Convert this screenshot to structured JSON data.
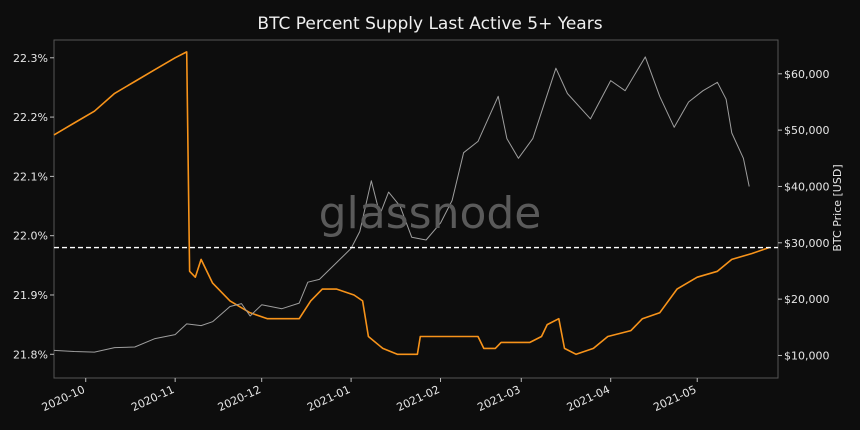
{
  "chart_data": {
    "type": "line",
    "title": "BTC Percent Supply Last Active 5+ Years",
    "watermark": "glassnode",
    "xlabel": "",
    "ylabel_left": "",
    "ylabel_right": "BTC Price [USD]",
    "x_ticks": [
      "2020-10",
      "2020-11",
      "2020-12",
      "2021-01",
      "2021-02",
      "2021-03",
      "2021-04",
      "2021-05"
    ],
    "y_left_ticks": [
      {
        "value": 21.8,
        "label": "21.8%"
      },
      {
        "value": 21.9,
        "label": "21.9%"
      },
      {
        "value": 22.0,
        "label": "22.0%"
      },
      {
        "value": 22.1,
        "label": "22.1%"
      },
      {
        "value": 22.2,
        "label": "22.2%"
      },
      {
        "value": 22.3,
        "label": "22.3%"
      }
    ],
    "y_right_ticks": [
      {
        "value": 10000,
        "label": "$10,000"
      },
      {
        "value": 20000,
        "label": "$20,000"
      },
      {
        "value": 30000,
        "label": "$30,000"
      },
      {
        "value": 40000,
        "label": "$40,000"
      },
      {
        "value": 50000,
        "label": "$50,000"
      },
      {
        "value": 60000,
        "label": "$60,000"
      }
    ],
    "xlim": [
      "2020-09-20",
      "2021-05-29"
    ],
    "ylim_left": [
      21.76,
      22.33
    ],
    "ylim_right": [
      6000,
      66000
    ],
    "grid": false,
    "reference_line": {
      "axis": "left",
      "value": 21.98,
      "style": "dashed",
      "color": "#ffffff"
    },
    "series": [
      {
        "axis": "left",
        "color": "#f7931a",
        "points": [
          [
            "2020-09-20",
            22.17
          ],
          [
            "2020-09-27",
            22.19
          ],
          [
            "2020-10-04",
            22.21
          ],
          [
            "2020-10-11",
            22.24
          ],
          [
            "2020-10-18",
            22.26
          ],
          [
            "2020-10-25",
            22.28
          ],
          [
            "2020-11-01",
            22.3
          ],
          [
            "2020-11-05",
            22.31
          ],
          [
            "2020-11-06",
            21.94
          ],
          [
            "2020-11-08",
            21.93
          ],
          [
            "2020-11-10",
            21.96
          ],
          [
            "2020-11-14",
            21.92
          ],
          [
            "2020-11-20",
            21.89
          ],
          [
            "2020-11-27",
            21.87
          ],
          [
            "2020-12-03",
            21.86
          ],
          [
            "2020-12-10",
            21.86
          ],
          [
            "2020-12-14",
            21.86
          ],
          [
            "2020-12-18",
            21.89
          ],
          [
            "2020-12-22",
            21.91
          ],
          [
            "2020-12-27",
            21.91
          ],
          [
            "2021-01-02",
            21.9
          ],
          [
            "2021-01-05",
            21.89
          ],
          [
            "2021-01-07",
            21.83
          ],
          [
            "2021-01-12",
            21.81
          ],
          [
            "2021-01-17",
            21.8
          ],
          [
            "2021-01-24",
            21.8
          ],
          [
            "2021-01-25",
            21.83
          ],
          [
            "2021-02-03",
            21.83
          ],
          [
            "2021-02-10",
            21.83
          ],
          [
            "2021-02-14",
            21.83
          ],
          [
            "2021-02-16",
            21.81
          ],
          [
            "2021-02-20",
            21.81
          ],
          [
            "2021-02-22",
            21.82
          ],
          [
            "2021-02-28",
            21.82
          ],
          [
            "2021-03-04",
            21.82
          ],
          [
            "2021-03-08",
            21.83
          ],
          [
            "2021-03-10",
            21.85
          ],
          [
            "2021-03-14",
            21.86
          ],
          [
            "2021-03-16",
            21.81
          ],
          [
            "2021-03-20",
            21.8
          ],
          [
            "2021-03-26",
            21.81
          ],
          [
            "2021-03-31",
            21.83
          ],
          [
            "2021-04-08",
            21.84
          ],
          [
            "2021-04-12",
            21.86
          ],
          [
            "2021-04-18",
            21.87
          ],
          [
            "2021-04-24",
            21.91
          ],
          [
            "2021-05-01",
            21.93
          ],
          [
            "2021-05-08",
            21.94
          ],
          [
            "2021-05-13",
            21.96
          ],
          [
            "2021-05-20",
            21.97
          ],
          [
            "2021-05-26",
            21.98
          ]
        ]
      },
      {
        "axis": "right",
        "color": "#9e9e9e",
        "points": [
          [
            "2020-09-20",
            10900
          ],
          [
            "2020-09-27",
            10700
          ],
          [
            "2020-10-04",
            10600
          ],
          [
            "2020-10-11",
            11400
          ],
          [
            "2020-10-18",
            11500
          ],
          [
            "2020-10-25",
            13000
          ],
          [
            "2020-11-01",
            13700
          ],
          [
            "2020-11-05",
            15600
          ],
          [
            "2020-11-10",
            15300
          ],
          [
            "2020-11-14",
            16000
          ],
          [
            "2020-11-20",
            18700
          ],
          [
            "2020-11-24",
            19200
          ],
          [
            "2020-11-27",
            17000
          ],
          [
            "2020-12-01",
            19000
          ],
          [
            "2020-12-08",
            18300
          ],
          [
            "2020-12-14",
            19300
          ],
          [
            "2020-12-17",
            23000
          ],
          [
            "2020-12-21",
            23500
          ],
          [
            "2020-12-27",
            26500
          ],
          [
            "2021-01-01",
            29000
          ],
          [
            "2021-01-04",
            32000
          ],
          [
            "2021-01-08",
            41000
          ],
          [
            "2021-01-11",
            35000
          ],
          [
            "2021-01-14",
            39000
          ],
          [
            "2021-01-18",
            36500
          ],
          [
            "2021-01-22",
            31000
          ],
          [
            "2021-01-27",
            30500
          ],
          [
            "2021-02-01",
            33500
          ],
          [
            "2021-02-05",
            37500
          ],
          [
            "2021-02-09",
            46000
          ],
          [
            "2021-02-14",
            48000
          ],
          [
            "2021-02-21",
            56000
          ],
          [
            "2021-02-24",
            48500
          ],
          [
            "2021-02-28",
            45000
          ],
          [
            "2021-03-05",
            48500
          ],
          [
            "2021-03-13",
            61000
          ],
          [
            "2021-03-17",
            56500
          ],
          [
            "2021-03-25",
            52000
          ],
          [
            "2021-04-01",
            58800
          ],
          [
            "2021-04-06",
            57000
          ],
          [
            "2021-04-13",
            63000
          ],
          [
            "2021-04-18",
            56000
          ],
          [
            "2021-04-23",
            50500
          ],
          [
            "2021-04-28",
            55000
          ],
          [
            "2021-05-03",
            57000
          ],
          [
            "2021-05-08",
            58500
          ],
          [
            "2021-05-11",
            55500
          ],
          [
            "2021-05-13",
            49500
          ],
          [
            "2021-05-17",
            45000
          ],
          [
            "2021-05-19",
            40000
          ]
        ]
      }
    ]
  }
}
